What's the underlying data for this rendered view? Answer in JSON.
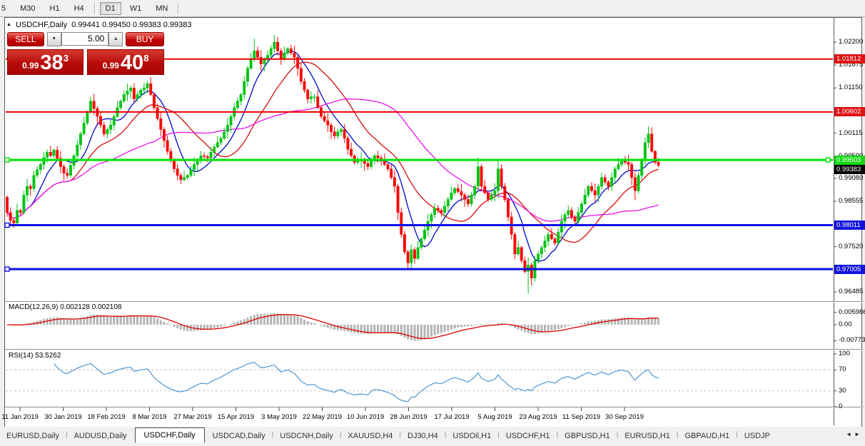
{
  "toolbar": {
    "timeframes": [
      {
        "label": "5",
        "active": false
      },
      {
        "label": "M30",
        "active": false
      },
      {
        "label": "H1",
        "active": false
      },
      {
        "label": "H4",
        "active": false
      },
      {
        "label": "D1",
        "active": true
      },
      {
        "label": "W1",
        "active": false
      },
      {
        "label": "MN",
        "active": false
      }
    ]
  },
  "chart_header": {
    "symbol": "USDCHF,Daily",
    "open": "0.99441",
    "high": "0.99450",
    "low": "0.99383",
    "close": "0.99383"
  },
  "trade_panel": {
    "sell_label": "SELL",
    "buy_label": "BUY",
    "volume": "5.00",
    "sell_price_prefix": "0.99",
    "sell_price_big": "38",
    "sell_price_sup": "3",
    "buy_price_prefix": "0.99",
    "buy_price_big": "40",
    "buy_price_sup": "8",
    "spin_down_icon": "▼",
    "spin_up_icon": "▲"
  },
  "price_axis": {
    "ticks": [
      {
        "label": "1.02200",
        "price": 102200
      },
      {
        "label": "1.01675",
        "price": 101675
      },
      {
        "label": "1.01150",
        "price": 101150
      },
      {
        "label": "1.00115",
        "price": 100115
      },
      {
        "label": "0.99590",
        "price": 99590
      },
      {
        "label": "0.99080",
        "price": 99080
      },
      {
        "label": "0.98555",
        "price": 98555
      },
      {
        "label": "0.97520",
        "price": 97520
      },
      {
        "label": "0.96485",
        "price": 96485
      }
    ],
    "badges": [
      {
        "label": "1.01812",
        "price": 101812,
        "bg": "#e01212",
        "fg": "#ffffff"
      },
      {
        "label": "1.00602",
        "price": 100602,
        "bg": "#e01212",
        "fg": "#ffffff"
      },
      {
        "label": "0.99503",
        "price": 99503,
        "bg": "#12d812",
        "fg": "#ffffff"
      },
      {
        "label": "0.99383",
        "price": 99383,
        "bg": "#000000",
        "fg": "#ffffff"
      },
      {
        "label": "0.98011",
        "price": 98011,
        "bg": "#1212e0",
        "fg": "#ffffff"
      },
      {
        "label": "0.97005",
        "price": 97005,
        "bg": "#1212e0",
        "fg": "#ffffff"
      }
    ]
  },
  "indicator_macd": {
    "label": "MACD(12,26,9)",
    "value_main": "0.002128",
    "value_signal": "0.002108",
    "axis": [
      {
        "label": "0.005986",
        "v": 0.005986
      },
      {
        "label": "0.00",
        "v": 0
      },
      {
        "label": "-0.007737",
        "v": -0.007737
      }
    ]
  },
  "indicator_rsi": {
    "label": "RSI(14)",
    "value": "53.5262",
    "axis": [
      {
        "label": "100",
        "v": 100
      },
      {
        "label": "70",
        "v": 70
      },
      {
        "label": "30",
        "v": 30
      },
      {
        "label": "0",
        "v": 0
      }
    ],
    "levels": [
      70,
      30
    ]
  },
  "time_axis": [
    "11 Jan 2019",
    "30 Jan 2019",
    "18 Feb 2019",
    "8 Mar 2019",
    "27 Mar 2019",
    "15 Apr 2019",
    "3 May 2019",
    "22 May 2019",
    "10 Jun 2019",
    "28 Jun 2019",
    "17 Jul 2019",
    "5 Aug 2019",
    "23 Aug 2019",
    "11 Sep 2019",
    "30 Sep 2019"
  ],
  "tabs": {
    "items": [
      "EURUSD,Daily",
      "AUDUSD,Daily",
      "USDCHF,Daily",
      "USDCAD,Daily",
      "USDCNH,Daily",
      "XAUUSD,H4",
      "DJ30,H4",
      "USDOil,H1",
      "USDCHF,H1",
      "GBPUSD,H1",
      "EURUSD,H1",
      "GBPAUD,H1",
      "USDJP"
    ],
    "active_index": 2,
    "scroll_left_icon": "◄",
    "scroll_right_icon": "►"
  },
  "chart_data": {
    "type": "candlestick",
    "symbol": "USDCHF",
    "timeframe": "Daily",
    "ylim": [
      0.96485,
      1.022
    ],
    "price_scale": 1e-05,
    "first_open": 98650,
    "closes": [
      98300,
      98120,
      98060,
      98350,
      98300,
      98700,
      98900,
      98850,
      99150,
      99280,
      99400,
      99560,
      99680,
      99600,
      99730,
      99540,
      99350,
      99200,
      99150,
      99380,
      99600,
      99850,
      100100,
      100350,
      100600,
      100850,
      100680,
      100500,
      100300,
      100100,
      100200,
      100300,
      100500,
      100700,
      100850,
      101000,
      101080,
      101150,
      100900,
      101000,
      101100,
      101150,
      101250,
      101000,
      100700,
      100450,
      100200,
      99950,
      99700,
      99500,
      99300,
      99150,
      99050,
      99100,
      99150,
      99280,
      99400,
      99500,
      99600,
      99580,
      99550,
      99680,
      99800,
      99900,
      100000,
      100150,
      100300,
      100500,
      100700,
      100850,
      101000,
      101300,
      101600,
      101800,
      102000,
      101850,
      101700,
      101800,
      101900,
      102050,
      102200,
      102000,
      101800,
      101950,
      102050,
      101950,
      101850,
      101600,
      101300,
      101100,
      100900,
      100950,
      100950,
      100700,
      100500,
      100400,
      100300,
      100150,
      100050,
      100150,
      100200,
      100000,
      99750,
      99600,
      99450,
      99480,
      99500,
      99420,
      99350,
      99500,
      99600,
      99550,
      99500,
      99400,
      99300,
      99100,
      98900,
      98300,
      97800,
      97400,
      97150,
      97450,
      97250,
      97500,
      97700,
      97900,
      98100,
      98250,
      98400,
      98350,
      98300,
      98450,
      98600,
      98750,
      98850,
      98780,
      98700,
      98600,
      98500,
      98700,
      98900,
      99350,
      98900,
      98750,
      98600,
      98700,
      98800,
      99300,
      98900,
      98600,
      98200,
      97800,
      97350,
      97500,
      97200,
      96950,
      97100,
      96800,
      97200,
      97350,
      97500,
      97650,
      97800,
      97700,
      97600,
      97850,
      98100,
      98250,
      98350,
      98200,
      98100,
      98300,
      98500,
      98700,
      98900,
      98800,
      98700,
      98900,
      99100,
      99000,
      98900,
      99100,
      99300,
      99400,
      99500,
      99450,
      99400,
      99100,
      98800,
      99150,
      99500,
      99900,
      100100,
      99700,
      99450,
      99383
    ],
    "wick_cycle": [
      45,
      120,
      60,
      150,
      35,
      95,
      170,
      55,
      110,
      75
    ],
    "wick_overrides": {
      "2": {
        "low": 97950
      },
      "52": {
        "low": 98950
      },
      "74": {
        "high": 102280
      },
      "80": {
        "high": 102360
      },
      "120": {
        "low": 96980
      },
      "121": {
        "low": 97000
      },
      "141": {
        "high": 99560
      },
      "147": {
        "high": 99520
      },
      "156": {
        "low": 96450
      },
      "188": {
        "low": 98580
      },
      "192": {
        "high": 100270
      }
    },
    "levels": [
      {
        "price": 101812,
        "color": "#ee0000",
        "width": 2,
        "handles": []
      },
      {
        "price": 100602,
        "color": "#ee0000",
        "width": 2,
        "handles": []
      },
      {
        "price": 99503,
        "color": "#00e400",
        "width": 3,
        "handles": [
          "left",
          "right"
        ]
      },
      {
        "price": 98011,
        "color": "#0f0fe8",
        "width": 3,
        "handles": [
          "left"
        ]
      },
      {
        "price": 97005,
        "color": "#0f0fe8",
        "width": 3,
        "handles": [
          "left"
        ]
      }
    ],
    "moving_averages": [
      {
        "period": 8,
        "color": "#0008c8"
      },
      {
        "period": 20,
        "color": "#d40b0b"
      },
      {
        "period": 45,
        "color": "#ea12ea"
      }
    ],
    "macd_params": {
      "fast": 12,
      "slow": 26,
      "signal": 9
    },
    "rsi_period": 14,
    "colors": {
      "bull": "#00c414",
      "bear": "#f80808",
      "macd_hist": "#b4b4b4",
      "macd_signal": "#dd0000",
      "rsi_line": "#4f97d7",
      "grid_dash": "#c0c0c0"
    }
  }
}
